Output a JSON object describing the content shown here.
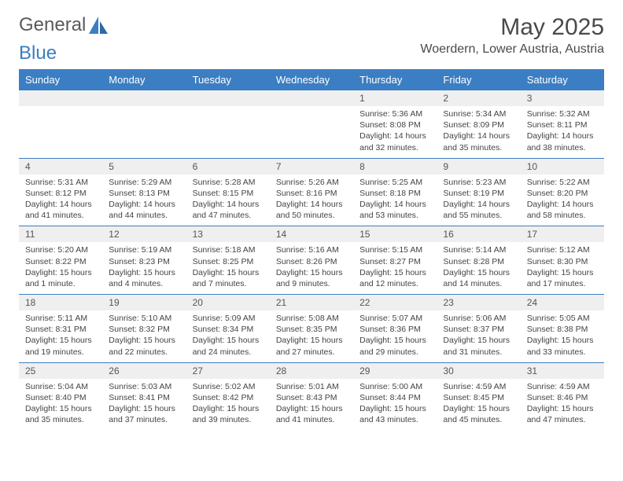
{
  "logo": {
    "part1": "General",
    "part2": "Blue"
  },
  "title": "May 2025",
  "location": "Woerdern, Lower Austria, Austria",
  "colors": {
    "header_bg": "#3b7ec3",
    "header_text": "#ffffff",
    "daynum_bg": "#efefef",
    "week_border": "#3b7ec3",
    "body_text": "#444444",
    "title_text": "#4a4a4a"
  },
  "day_labels": [
    "Sunday",
    "Monday",
    "Tuesday",
    "Wednesday",
    "Thursday",
    "Friday",
    "Saturday"
  ],
  "weeks": [
    [
      null,
      null,
      null,
      null,
      {
        "n": "1",
        "sr": "Sunrise: 5:36 AM",
        "ss": "Sunset: 8:08 PM",
        "dl": "Daylight: 14 hours and 32 minutes."
      },
      {
        "n": "2",
        "sr": "Sunrise: 5:34 AM",
        "ss": "Sunset: 8:09 PM",
        "dl": "Daylight: 14 hours and 35 minutes."
      },
      {
        "n": "3",
        "sr": "Sunrise: 5:32 AM",
        "ss": "Sunset: 8:11 PM",
        "dl": "Daylight: 14 hours and 38 minutes."
      }
    ],
    [
      {
        "n": "4",
        "sr": "Sunrise: 5:31 AM",
        "ss": "Sunset: 8:12 PM",
        "dl": "Daylight: 14 hours and 41 minutes."
      },
      {
        "n": "5",
        "sr": "Sunrise: 5:29 AM",
        "ss": "Sunset: 8:13 PM",
        "dl": "Daylight: 14 hours and 44 minutes."
      },
      {
        "n": "6",
        "sr": "Sunrise: 5:28 AM",
        "ss": "Sunset: 8:15 PM",
        "dl": "Daylight: 14 hours and 47 minutes."
      },
      {
        "n": "7",
        "sr": "Sunrise: 5:26 AM",
        "ss": "Sunset: 8:16 PM",
        "dl": "Daylight: 14 hours and 50 minutes."
      },
      {
        "n": "8",
        "sr": "Sunrise: 5:25 AM",
        "ss": "Sunset: 8:18 PM",
        "dl": "Daylight: 14 hours and 53 minutes."
      },
      {
        "n": "9",
        "sr": "Sunrise: 5:23 AM",
        "ss": "Sunset: 8:19 PM",
        "dl": "Daylight: 14 hours and 55 minutes."
      },
      {
        "n": "10",
        "sr": "Sunrise: 5:22 AM",
        "ss": "Sunset: 8:20 PM",
        "dl": "Daylight: 14 hours and 58 minutes."
      }
    ],
    [
      {
        "n": "11",
        "sr": "Sunrise: 5:20 AM",
        "ss": "Sunset: 8:22 PM",
        "dl": "Daylight: 15 hours and 1 minute."
      },
      {
        "n": "12",
        "sr": "Sunrise: 5:19 AM",
        "ss": "Sunset: 8:23 PM",
        "dl": "Daylight: 15 hours and 4 minutes."
      },
      {
        "n": "13",
        "sr": "Sunrise: 5:18 AM",
        "ss": "Sunset: 8:25 PM",
        "dl": "Daylight: 15 hours and 7 minutes."
      },
      {
        "n": "14",
        "sr": "Sunrise: 5:16 AM",
        "ss": "Sunset: 8:26 PM",
        "dl": "Daylight: 15 hours and 9 minutes."
      },
      {
        "n": "15",
        "sr": "Sunrise: 5:15 AM",
        "ss": "Sunset: 8:27 PM",
        "dl": "Daylight: 15 hours and 12 minutes."
      },
      {
        "n": "16",
        "sr": "Sunrise: 5:14 AM",
        "ss": "Sunset: 8:28 PM",
        "dl": "Daylight: 15 hours and 14 minutes."
      },
      {
        "n": "17",
        "sr": "Sunrise: 5:12 AM",
        "ss": "Sunset: 8:30 PM",
        "dl": "Daylight: 15 hours and 17 minutes."
      }
    ],
    [
      {
        "n": "18",
        "sr": "Sunrise: 5:11 AM",
        "ss": "Sunset: 8:31 PM",
        "dl": "Daylight: 15 hours and 19 minutes."
      },
      {
        "n": "19",
        "sr": "Sunrise: 5:10 AM",
        "ss": "Sunset: 8:32 PM",
        "dl": "Daylight: 15 hours and 22 minutes."
      },
      {
        "n": "20",
        "sr": "Sunrise: 5:09 AM",
        "ss": "Sunset: 8:34 PM",
        "dl": "Daylight: 15 hours and 24 minutes."
      },
      {
        "n": "21",
        "sr": "Sunrise: 5:08 AM",
        "ss": "Sunset: 8:35 PM",
        "dl": "Daylight: 15 hours and 27 minutes."
      },
      {
        "n": "22",
        "sr": "Sunrise: 5:07 AM",
        "ss": "Sunset: 8:36 PM",
        "dl": "Daylight: 15 hours and 29 minutes."
      },
      {
        "n": "23",
        "sr": "Sunrise: 5:06 AM",
        "ss": "Sunset: 8:37 PM",
        "dl": "Daylight: 15 hours and 31 minutes."
      },
      {
        "n": "24",
        "sr": "Sunrise: 5:05 AM",
        "ss": "Sunset: 8:38 PM",
        "dl": "Daylight: 15 hours and 33 minutes."
      }
    ],
    [
      {
        "n": "25",
        "sr": "Sunrise: 5:04 AM",
        "ss": "Sunset: 8:40 PM",
        "dl": "Daylight: 15 hours and 35 minutes."
      },
      {
        "n": "26",
        "sr": "Sunrise: 5:03 AM",
        "ss": "Sunset: 8:41 PM",
        "dl": "Daylight: 15 hours and 37 minutes."
      },
      {
        "n": "27",
        "sr": "Sunrise: 5:02 AM",
        "ss": "Sunset: 8:42 PM",
        "dl": "Daylight: 15 hours and 39 minutes."
      },
      {
        "n": "28",
        "sr": "Sunrise: 5:01 AM",
        "ss": "Sunset: 8:43 PM",
        "dl": "Daylight: 15 hours and 41 minutes."
      },
      {
        "n": "29",
        "sr": "Sunrise: 5:00 AM",
        "ss": "Sunset: 8:44 PM",
        "dl": "Daylight: 15 hours and 43 minutes."
      },
      {
        "n": "30",
        "sr": "Sunrise: 4:59 AM",
        "ss": "Sunset: 8:45 PM",
        "dl": "Daylight: 15 hours and 45 minutes."
      },
      {
        "n": "31",
        "sr": "Sunrise: 4:59 AM",
        "ss": "Sunset: 8:46 PM",
        "dl": "Daylight: 15 hours and 47 minutes."
      }
    ]
  ]
}
